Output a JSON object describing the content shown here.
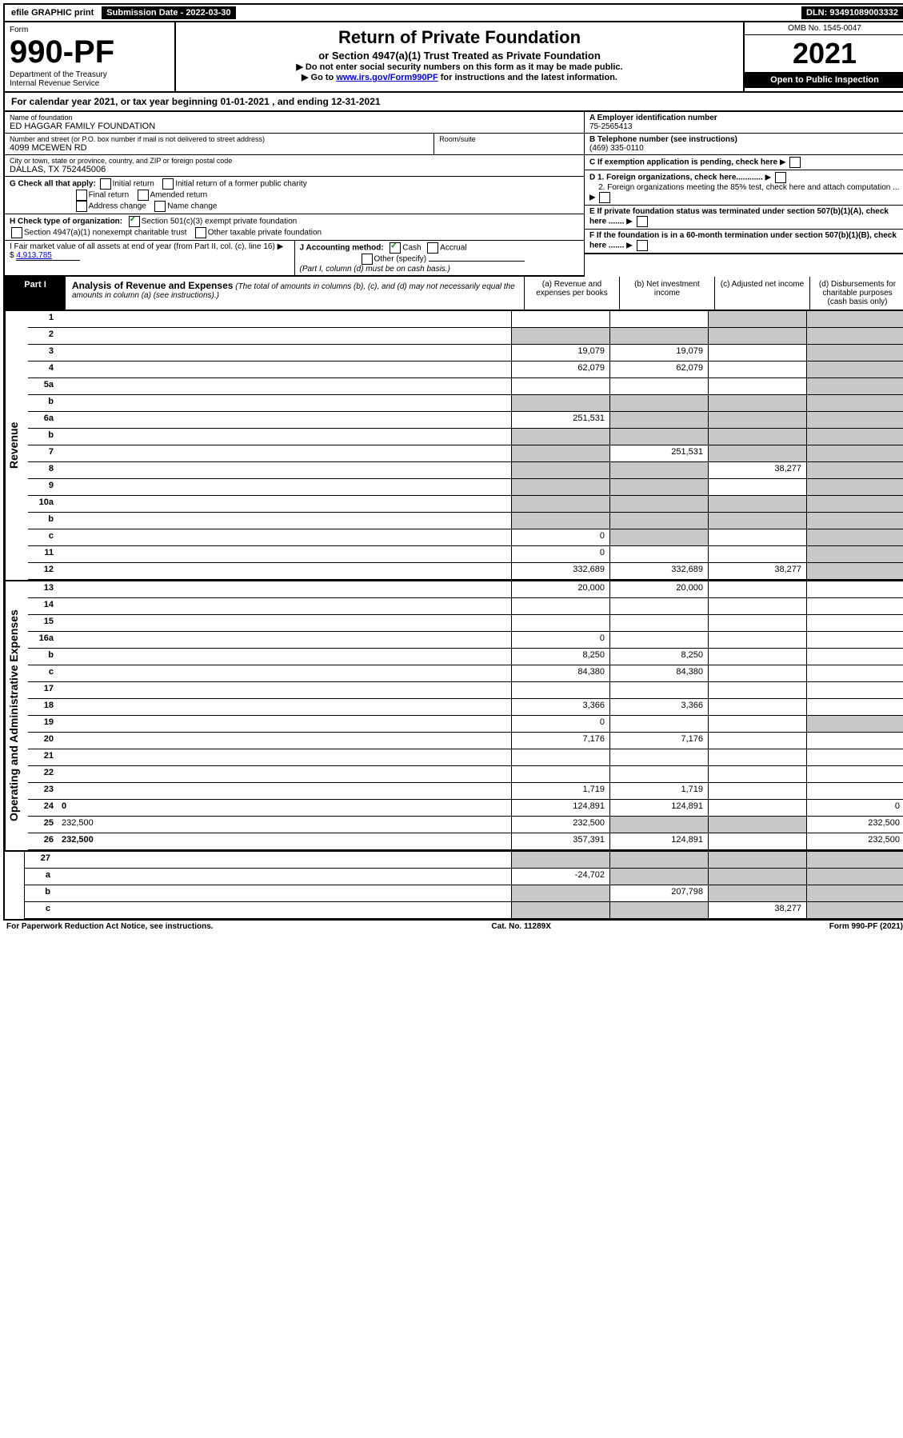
{
  "top": {
    "efile": "efile GRAPHIC print",
    "submission": "Submission Date - 2022-03-30",
    "dln": "DLN: 93491089003332"
  },
  "header": {
    "form_label": "Form",
    "form_no": "990-PF",
    "dept1": "Department of the Treasury",
    "dept2": "Internal Revenue Service",
    "title": "Return of Private Foundation",
    "subtitle": "or Section 4947(a)(1) Trust Treated as Private Foundation",
    "note1": "▶ Do not enter social security numbers on this form as it may be made public.",
    "note2_pre": "▶ Go to ",
    "note2_link": "www.irs.gov/Form990PF",
    "note2_post": " for instructions and the latest information.",
    "omb": "OMB No. 1545-0047",
    "year": "2021",
    "open": "Open to Public Inspection"
  },
  "cal_year": "For calendar year 2021, or tax year beginning 01-01-2021                                    , and ending 12-31-2021",
  "info": {
    "name_label": "Name of foundation",
    "name": "ED HAGGAR FAMILY FOUNDATION",
    "addr_label": "Number and street (or P.O. box number if mail is not delivered to street address)",
    "addr": "4099 MCEWEN RD",
    "room_label": "Room/suite",
    "city_label": "City or town, state or province, country, and ZIP or foreign postal code",
    "city": "DALLAS, TX  752445006",
    "a_label": "A Employer identification number",
    "a_val": "75-2565413",
    "b_label": "B Telephone number (see instructions)",
    "b_val": "(469) 335-0110",
    "c_label": "C If exemption application is pending, check here",
    "d1": "D 1. Foreign organizations, check here............",
    "d2": "2. Foreign organizations meeting the 85% test, check here and attach computation ...",
    "e": "E  If private foundation status was terminated under section 507(b)(1)(A), check here .......",
    "f": "F  If the foundation is in a 60-month termination under section 507(b)(1)(B), check here .......",
    "g_label": "G Check all that apply:",
    "g_opts": [
      "Initial return",
      "Initial return of a former public charity",
      "Final return",
      "Amended return",
      "Address change",
      "Name change"
    ],
    "h_label": "H Check type of organization:",
    "h_opts": [
      "Section 501(c)(3) exempt private foundation",
      "Section 4947(a)(1) nonexempt charitable trust",
      "Other taxable private foundation"
    ],
    "i_label": "I Fair market value of all assets at end of year (from Part II, col. (c), line 16) ▶ $",
    "i_val": "4,913,785",
    "j_label": "J Accounting method:",
    "j_opts": [
      "Cash",
      "Accrual",
      "Other (specify)"
    ],
    "j_note": "(Part I, column (d) must be on cash basis.)"
  },
  "part1": {
    "label": "Part I",
    "title": "Analysis of Revenue and Expenses",
    "note": "(The total of amounts in columns (b), (c), and (d) may not necessarily equal the amounts in column (a) (see instructions).)",
    "cols": [
      "(a)  Revenue and expenses per books",
      "(b)  Net investment income",
      "(c)  Adjusted net income",
      "(d)  Disbursements for charitable purposes (cash basis only)"
    ]
  },
  "side_labels": {
    "rev": "Revenue",
    "exp": "Operating and Administrative Expenses"
  },
  "rows": {
    "r1": {
      "n": "1",
      "d": "",
      "a": "",
      "b": "",
      "c": "",
      "ga": false,
      "gb": false,
      "gc": true,
      "gd": true
    },
    "r2": {
      "n": "2",
      "d": "",
      "a": "",
      "b": "",
      "c": "",
      "ga": true,
      "gb": true,
      "gc": true,
      "gd": true
    },
    "r3": {
      "n": "3",
      "d": "",
      "a": "19,079",
      "b": "19,079",
      "c": "",
      "gd": true
    },
    "r4": {
      "n": "4",
      "d": "",
      "a": "62,079",
      "b": "62,079",
      "c": "",
      "gd": true
    },
    "r5a": {
      "n": "5a",
      "d": "",
      "a": "",
      "b": "",
      "c": "",
      "gd": true
    },
    "r5b": {
      "n": "b",
      "d": "",
      "a": "",
      "b": "",
      "c": "",
      "ga": true,
      "gb": true,
      "gc": true,
      "gd": true
    },
    "r6a": {
      "n": "6a",
      "d": "",
      "a": "251,531",
      "b": "",
      "c": "",
      "gb": true,
      "gc": true,
      "gd": true
    },
    "r6b": {
      "n": "b",
      "d": "",
      "a": "",
      "b": "",
      "c": "",
      "ga": true,
      "gb": true,
      "gc": true,
      "gd": true
    },
    "r7": {
      "n": "7",
      "d": "",
      "a": "",
      "b": "251,531",
      "c": "",
      "ga": true,
      "gc": true,
      "gd": true
    },
    "r8": {
      "n": "8",
      "d": "",
      "a": "",
      "b": "",
      "c": "38,277",
      "ga": true,
      "gb": true,
      "gd": true
    },
    "r9": {
      "n": "9",
      "d": "",
      "a": "",
      "b": "",
      "c": "",
      "ga": true,
      "gb": true,
      "gd": true
    },
    "r10a": {
      "n": "10a",
      "d": "",
      "a": "",
      "b": "",
      "c": "",
      "ga": true,
      "gb": true,
      "gc": true,
      "gd": true
    },
    "r10b": {
      "n": "b",
      "d": "",
      "a": "",
      "b": "",
      "c": "",
      "ga": true,
      "gb": true,
      "gc": true,
      "gd": true
    },
    "r10c": {
      "n": "c",
      "d": "",
      "a": "0",
      "b": "",
      "c": "",
      "gb": true,
      "gd": true
    },
    "r11": {
      "n": "11",
      "d": "",
      "a": "0",
      "b": "",
      "c": "",
      "gd": true
    },
    "r12": {
      "n": "12",
      "d": "",
      "a": "332,689",
      "b": "332,689",
      "c": "38,277",
      "gd": true,
      "bold": true
    },
    "r13": {
      "n": "13",
      "d": "",
      "a": "20,000",
      "b": "20,000",
      "c": ""
    },
    "r14": {
      "n": "14",
      "d": "",
      "a": "",
      "b": "",
      "c": ""
    },
    "r15": {
      "n": "15",
      "d": "",
      "a": "",
      "b": "",
      "c": ""
    },
    "r16a": {
      "n": "16a",
      "d": "",
      "a": "0",
      "b": "",
      "c": ""
    },
    "r16b": {
      "n": "b",
      "d": "",
      "a": "8,250",
      "b": "8,250",
      "c": ""
    },
    "r16c": {
      "n": "c",
      "d": "",
      "a": "84,380",
      "b": "84,380",
      "c": ""
    },
    "r17": {
      "n": "17",
      "d": "",
      "a": "",
      "b": "",
      "c": ""
    },
    "r18": {
      "n": "18",
      "d": "",
      "a": "3,366",
      "b": "3,366",
      "c": ""
    },
    "r19": {
      "n": "19",
      "d": "",
      "a": "0",
      "b": "",
      "c": "",
      "gd": true
    },
    "r20": {
      "n": "20",
      "d": "",
      "a": "7,176",
      "b": "7,176",
      "c": ""
    },
    "r21": {
      "n": "21",
      "d": "",
      "a": "",
      "b": "",
      "c": ""
    },
    "r22": {
      "n": "22",
      "d": "",
      "a": "",
      "b": "",
      "c": ""
    },
    "r23": {
      "n": "23",
      "d": "",
      "a": "1,719",
      "b": "1,719",
      "c": ""
    },
    "r24": {
      "n": "24",
      "d": "0",
      "a": "124,891",
      "b": "124,891",
      "c": "",
      "bold": true
    },
    "r25": {
      "n": "25",
      "d": "232,500",
      "a": "232,500",
      "b": "",
      "c": "",
      "gb": true,
      "gc": true
    },
    "r26": {
      "n": "26",
      "d": "232,500",
      "a": "357,391",
      "b": "124,891",
      "c": "",
      "bold": true
    },
    "r27": {
      "n": "27",
      "d": "",
      "a": "",
      "b": "",
      "c": "",
      "ga": true,
      "gb": true,
      "gc": true,
      "gd": true
    },
    "r27a": {
      "n": "a",
      "d": "",
      "a": "-24,702",
      "b": "",
      "c": "",
      "gb": true,
      "gc": true,
      "gd": true,
      "bold": true
    },
    "r27b": {
      "n": "b",
      "d": "",
      "a": "",
      "b": "207,798",
      "c": "",
      "ga": true,
      "gc": true,
      "gd": true,
      "bold": true
    },
    "r27c": {
      "n": "c",
      "d": "",
      "a": "",
      "b": "",
      "c": "38,277",
      "ga": true,
      "gb": true,
      "gd": true,
      "bold": true
    }
  },
  "footer": {
    "left": "For Paperwork Reduction Act Notice, see instructions.",
    "mid": "Cat. No. 11289X",
    "right": "Form 990-PF (2021)"
  }
}
